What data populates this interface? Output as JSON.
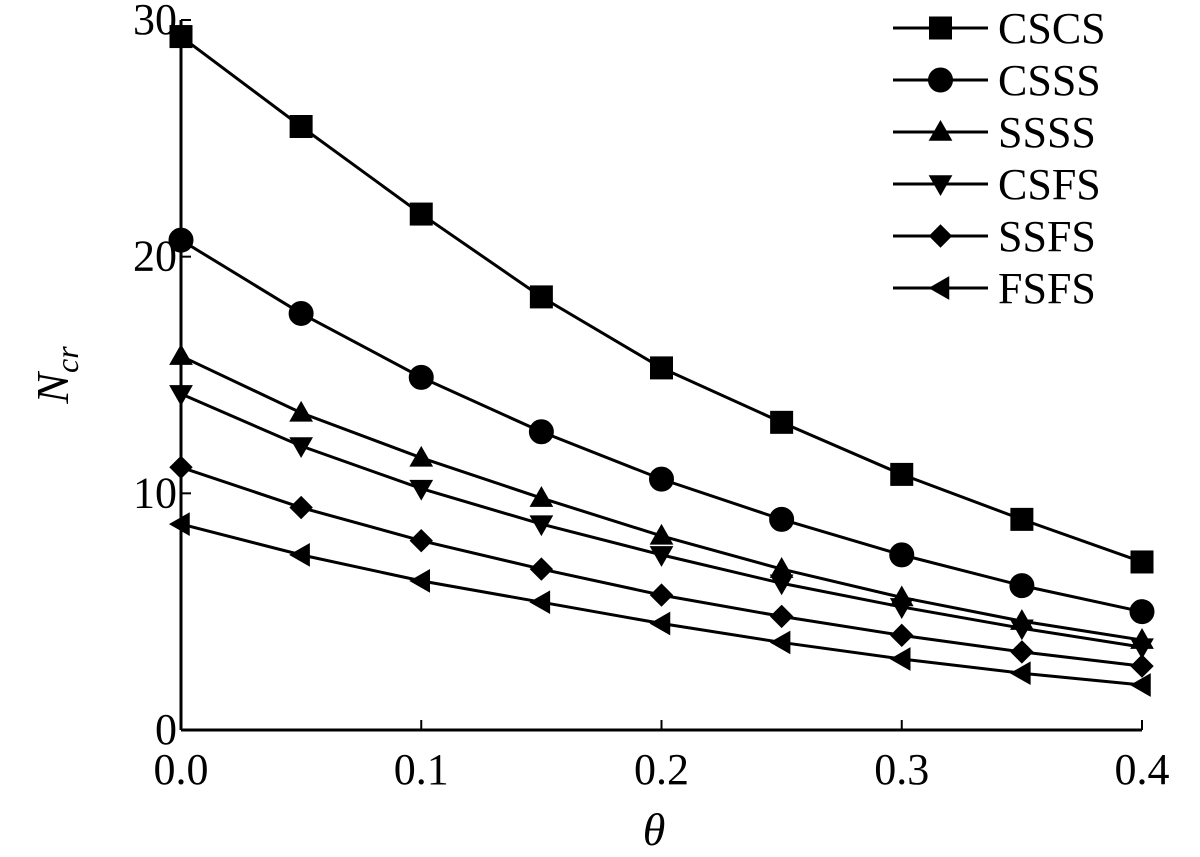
{
  "chart_data": {
    "type": "line",
    "xlabel": "θ",
    "ylabel": "N",
    "ylabel_sub": "cr",
    "xlim": [
      0.0,
      0.4
    ],
    "ylim": [
      0,
      30
    ],
    "xticks": [
      "0.0",
      "0.1",
      "0.2",
      "0.3",
      "0.4"
    ],
    "yticks": [
      "0",
      "10",
      "20",
      "30"
    ],
    "x": [
      0.0,
      0.05,
      0.1,
      0.15,
      0.2,
      0.25,
      0.3,
      0.35,
      0.4
    ],
    "legend_position": "top-right",
    "grid": false,
    "series": [
      {
        "name": "CSCS",
        "marker": "square",
        "values": [
          29.3,
          25.5,
          21.8,
          18.3,
          15.3,
          13.0,
          10.8,
          8.9,
          7.1
        ]
      },
      {
        "name": "CSSS",
        "marker": "circle",
        "values": [
          20.7,
          17.6,
          14.9,
          12.6,
          10.6,
          8.9,
          7.4,
          6.1,
          5.0
        ]
      },
      {
        "name": "SSSS",
        "marker": "triangle-up",
        "values": [
          15.8,
          13.4,
          11.5,
          9.8,
          8.2,
          6.8,
          5.6,
          4.6,
          3.8
        ]
      },
      {
        "name": "CSFS",
        "marker": "triangle-down",
        "values": [
          14.2,
          12.0,
          10.2,
          8.7,
          7.4,
          6.2,
          5.2,
          4.3,
          3.5
        ]
      },
      {
        "name": "SSFS",
        "marker": "diamond",
        "values": [
          11.1,
          9.4,
          8.0,
          6.8,
          5.7,
          4.8,
          4.0,
          3.3,
          2.7
        ]
      },
      {
        "name": "FSFS",
        "marker": "triangle-left",
        "values": [
          8.7,
          7.4,
          6.3,
          5.4,
          4.5,
          3.7,
          3.0,
          2.4,
          1.9
        ]
      }
    ]
  }
}
